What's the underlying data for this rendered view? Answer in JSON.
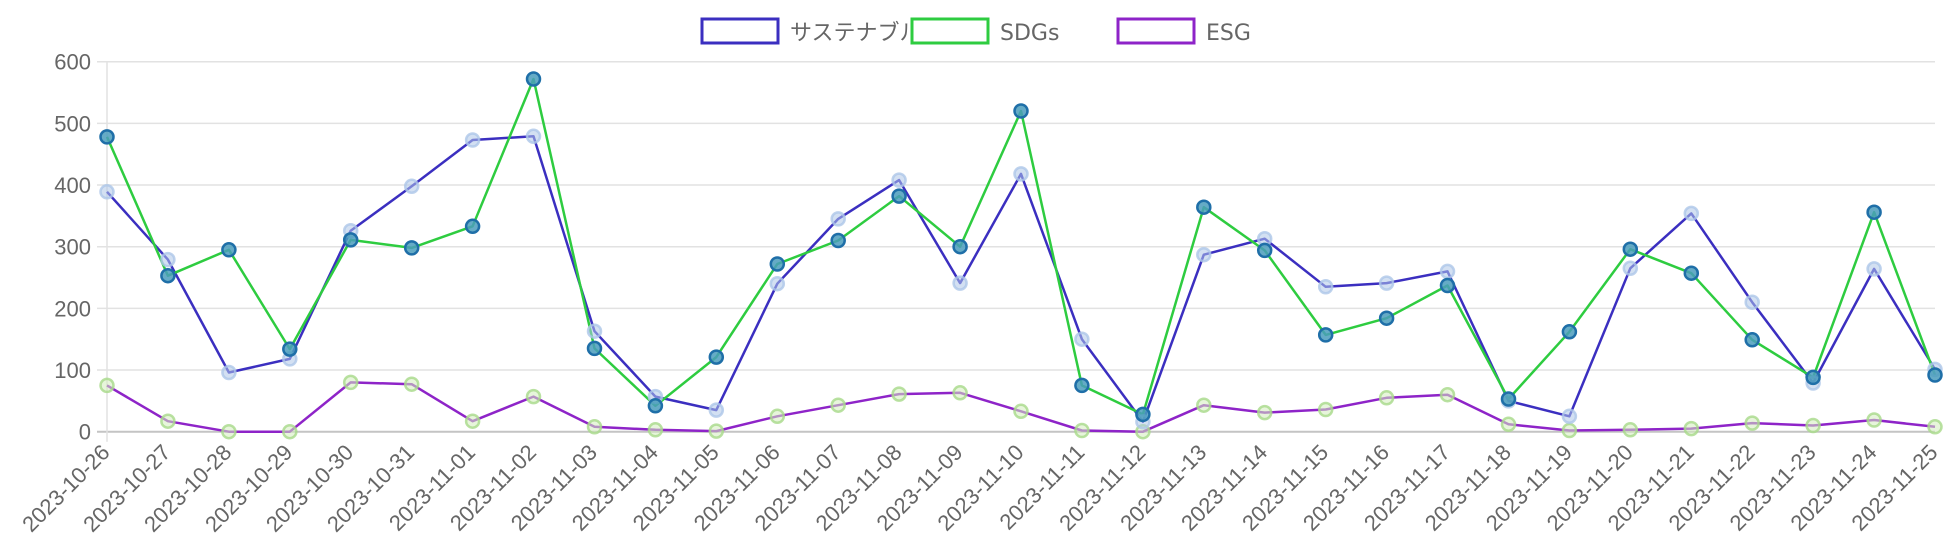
{
  "chart_data": {
    "type": "line",
    "title": "",
    "xlabel": "",
    "ylabel": "",
    "ylim": [
      0,
      600
    ],
    "yticks": [
      0,
      100,
      200,
      300,
      400,
      500,
      600
    ],
    "grid": true,
    "legend_position": "top",
    "categories": [
      "2023-10-26",
      "2023-10-27",
      "2023-10-28",
      "2023-10-29",
      "2023-10-30",
      "2023-10-31",
      "2023-11-01",
      "2023-11-02",
      "2023-11-03",
      "2023-11-04",
      "2023-11-05",
      "2023-11-06",
      "2023-11-07",
      "2023-11-08",
      "2023-11-09",
      "2023-11-10",
      "2023-11-11",
      "2023-11-12",
      "2023-11-13",
      "2023-11-14",
      "2023-11-15",
      "2023-11-16",
      "2023-11-17",
      "2023-11-18",
      "2023-11-19",
      "2023-11-20",
      "2023-11-21",
      "2023-11-22",
      "2023-11-23",
      "2023-11-24",
      "2023-11-25"
    ],
    "series": [
      {
        "name": "サステナブル",
        "color": "#3b2fc0",
        "marker_fill": "#aec7e8",
        "marker_stroke": "#aec7e8",
        "values": [
          389,
          279,
          96,
          118,
          326,
          398,
          473,
          479,
          163,
          57,
          35,
          240,
          345,
          408,
          241,
          418,
          150,
          16,
          287,
          313,
          235,
          241,
          260,
          50,
          25,
          265,
          354,
          210,
          79,
          264,
          101
        ]
      },
      {
        "name": "SDGs",
        "color": "#2ecc40",
        "marker_fill": "#4a9cbc",
        "marker_stroke": "#1f6fa8",
        "values": [
          478,
          253,
          295,
          134,
          311,
          298,
          333,
          572,
          135,
          42,
          121,
          272,
          310,
          382,
          300,
          520,
          75,
          28,
          364,
          294,
          157,
          184,
          237,
          53,
          162,
          296,
          257,
          149,
          88,
          356,
          92
        ]
      },
      {
        "name": "ESG",
        "color": "#8e24c8",
        "marker_fill": "#d4ecbd",
        "marker_stroke": "#a8d98a",
        "values": [
          75,
          17,
          0,
          0,
          80,
          77,
          17,
          57,
          8,
          3,
          1,
          25,
          43,
          61,
          63,
          33,
          2,
          0,
          43,
          31,
          36,
          55,
          60,
          12,
          2,
          3,
          5,
          14,
          10,
          19,
          8
        ]
      }
    ]
  },
  "legend": {
    "items": [
      {
        "label": "サステナブル",
        "color": "#3b2fc0"
      },
      {
        "label": "SDGs",
        "color": "#2ecc40"
      },
      {
        "label": "ESG",
        "color": "#8e24c8"
      }
    ]
  }
}
